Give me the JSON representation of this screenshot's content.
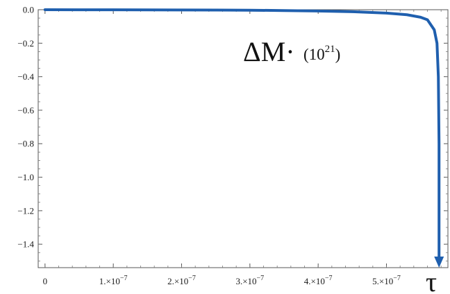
{
  "chart_data": {
    "type": "line",
    "title": "",
    "xlabel": "τ",
    "ylabel": "",
    "annotation": {
      "main": "ΔM·",
      "factor_open": "(10",
      "factor_exp": "21",
      "factor_close": ")"
    },
    "xlim": [
      -1e-08,
      5.9e-07
    ],
    "ylim": [
      -1.54,
      0.0
    ],
    "x_ticks": [
      {
        "value": 0,
        "label": "0"
      },
      {
        "value": 1e-07,
        "label": "1.×10",
        "exp": "−7"
      },
      {
        "value": 2e-07,
        "label": "2.×10",
        "exp": "−7"
      },
      {
        "value": 3e-07,
        "label": "3.×10",
        "exp": "−7"
      },
      {
        "value": 4e-07,
        "label": "4.×10",
        "exp": "−7"
      },
      {
        "value": 5e-07,
        "label": "5.×10",
        "exp": "−7"
      }
    ],
    "y_ticks": [
      {
        "value": 0.0,
        "label": "0.0"
      },
      {
        "value": -0.2,
        "label": "−0.2"
      },
      {
        "value": -0.4,
        "label": "−0.4"
      },
      {
        "value": -0.6,
        "label": "−0.6"
      },
      {
        "value": -0.8,
        "label": "−0.8"
      },
      {
        "value": -1.0,
        "label": "−1.0"
      },
      {
        "value": -1.2,
        "label": "−1.2"
      },
      {
        "value": -1.4,
        "label": "−1.4"
      }
    ],
    "series": [
      {
        "color": "#1f5fae",
        "points": [
          [
            0,
            0.0
          ],
          [
            5e-08,
            -0.0003
          ],
          [
            1e-07,
            -0.0006
          ],
          [
            1.5e-07,
            -0.001
          ],
          [
            2e-07,
            -0.0015
          ],
          [
            2.5e-07,
            -0.002
          ],
          [
            3e-07,
            -0.003
          ],
          [
            3.5e-07,
            -0.005
          ],
          [
            4e-07,
            -0.008
          ],
          [
            4.5e-07,
            -0.012
          ],
          [
            5e-07,
            -0.02
          ],
          [
            5.3e-07,
            -0.03
          ],
          [
            5.5e-07,
            -0.045
          ],
          [
            5.6e-07,
            -0.06
          ],
          [
            5.7e-07,
            -0.12
          ],
          [
            5.74e-07,
            -0.2
          ],
          [
            5.76e-07,
            -0.4
          ],
          [
            5.77e-07,
            -0.8
          ],
          [
            5.77e-07,
            -1.54
          ]
        ],
        "arrow_end": true
      }
    ],
    "grid": false,
    "frame": true
  }
}
